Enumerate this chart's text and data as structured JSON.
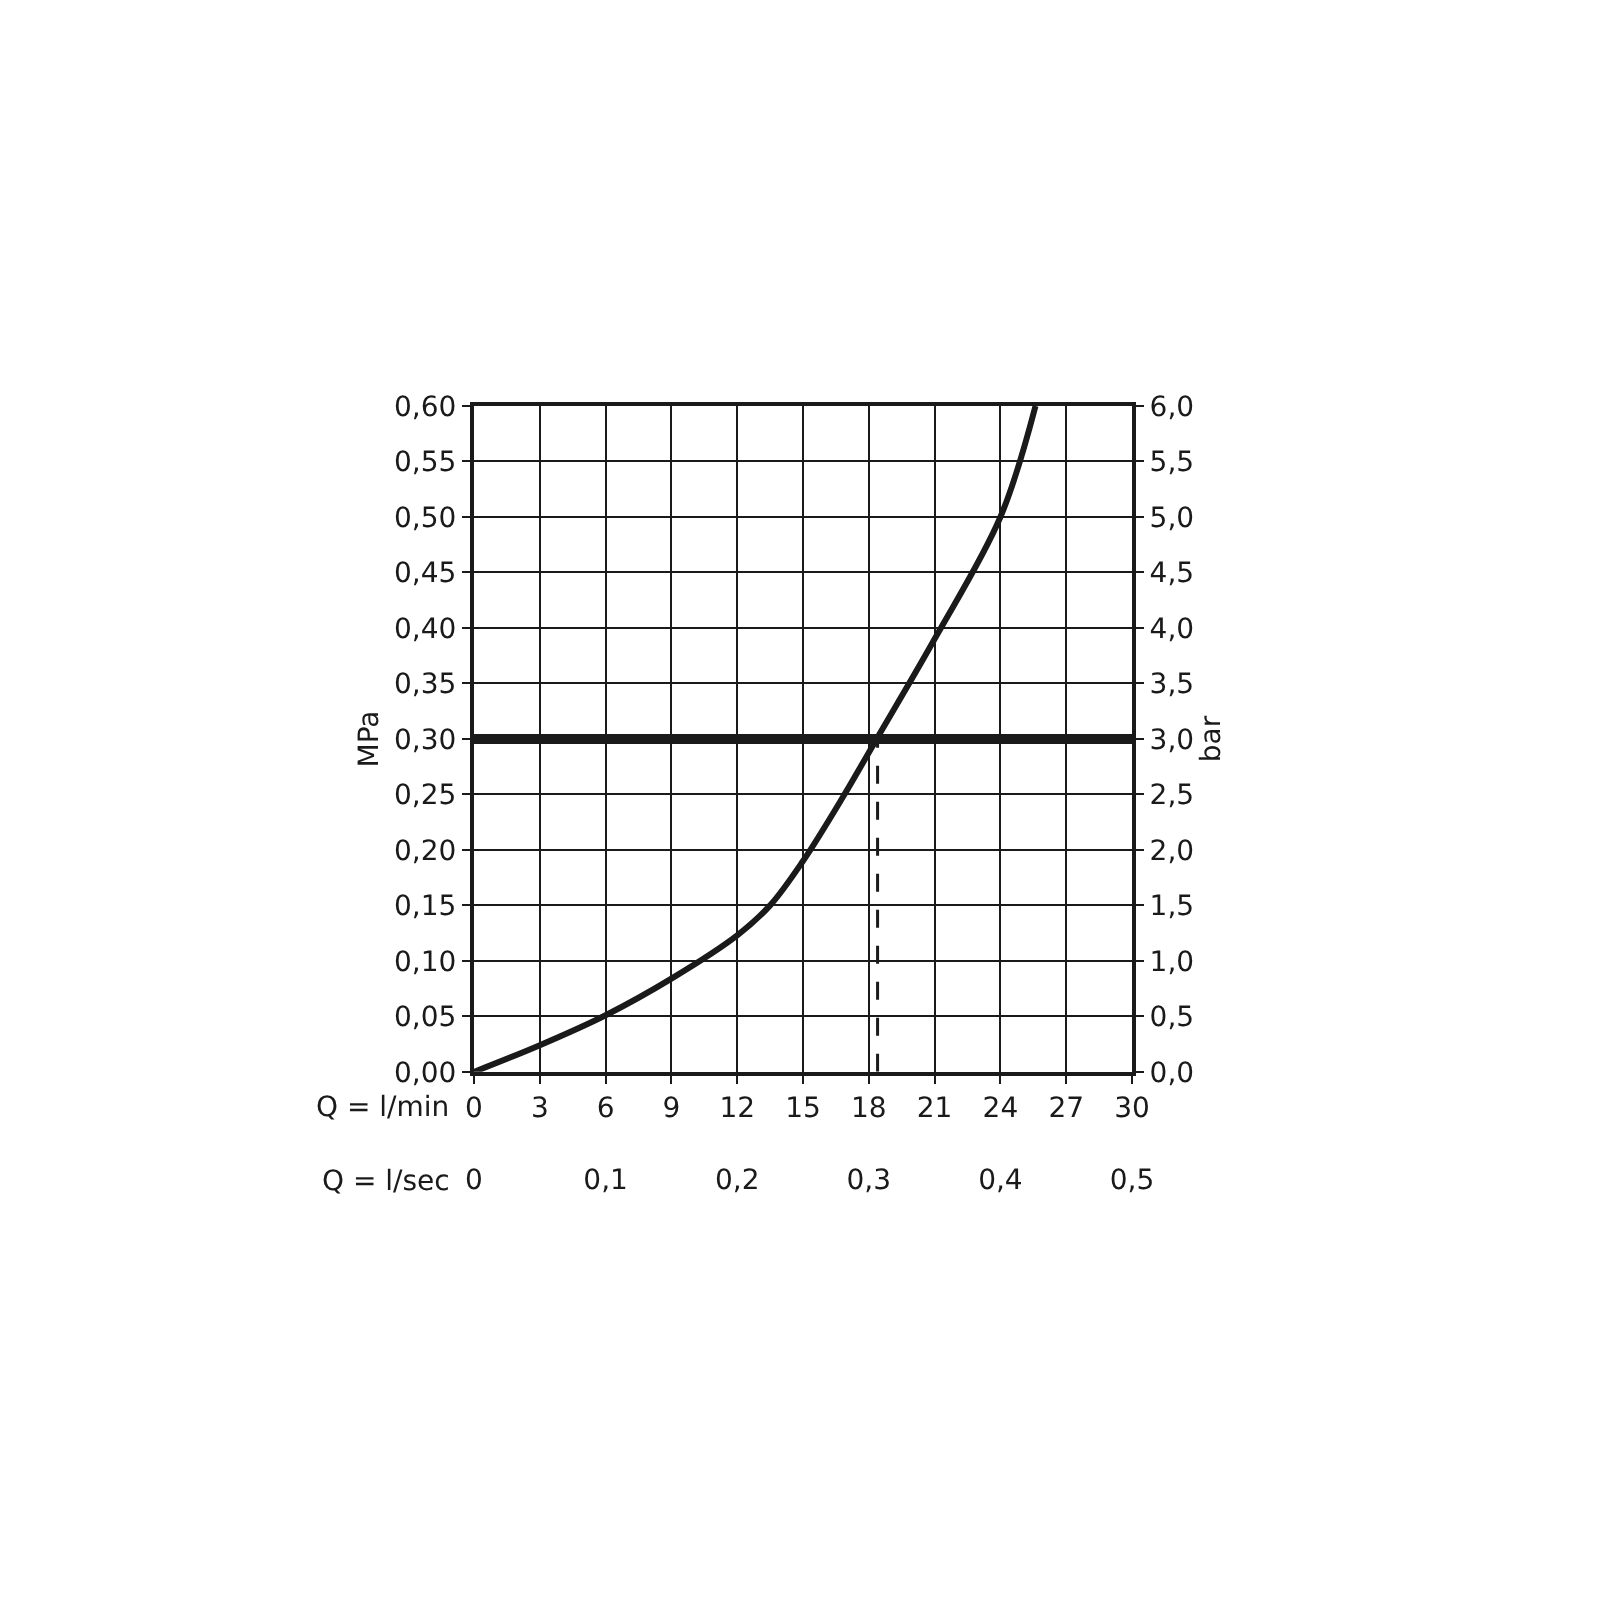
{
  "chart_data": {
    "type": "line",
    "xlabel": "Q = l/min",
    "x2label": "Q = l/sec",
    "ylabel": "MPa",
    "y2label": "bar",
    "series": [
      {
        "color": "#1a1a1a",
        "x": [
          0,
          3,
          6,
          9,
          12,
          13.5,
          15,
          16.8,
          18.3,
          21,
          24,
          25.6
        ],
        "values": [
          0,
          0.024,
          0.051,
          0.084,
          0.123,
          0.15,
          0.19,
          0.247,
          0.298,
          0.39,
          0.5,
          0.6
        ]
      },
      {
        "color": "#1a1a1a",
        "x": [
          18.4,
          18.4
        ],
        "values": [
          0,
          0.3
        ],
        "line_style": "dashed"
      }
    ],
    "ref_lines": [
      {
        "axis": "y",
        "value": 0.3,
        "color": "#1a1a1a"
      }
    ],
    "xlim": [
      0,
      30
    ],
    "xticks": [
      0,
      3,
      6,
      9,
      12,
      15,
      18,
      21,
      24,
      27,
      30
    ],
    "x2lim": [
      0,
      0.5
    ],
    "x2ticks": [
      0,
      {
        "value": 0.1,
        "label": "0,1"
      },
      {
        "value": 0.2,
        "label": "0,2"
      },
      {
        "value": 0.3,
        "label": "0,3"
      },
      {
        "value": 0.4,
        "label": "0,4"
      },
      {
        "value": 0.5,
        "label": "0,5"
      }
    ],
    "ylim": [
      0,
      0.6
    ],
    "yticks": [
      {
        "value": 0,
        "label": "0,00"
      },
      {
        "value": 0.05,
        "label": "0,05"
      },
      {
        "value": 0.1,
        "label": "0,10"
      },
      {
        "value": 0.15,
        "label": "0,15"
      },
      {
        "value": 0.2,
        "label": "0,20"
      },
      {
        "value": 0.25,
        "label": "0,25"
      },
      {
        "value": 0.3,
        "label": "0,30"
      },
      {
        "value": 0.35,
        "label": "0,35"
      },
      {
        "value": 0.4,
        "label": "0,40"
      },
      {
        "value": 0.45,
        "label": "0,45"
      },
      {
        "value": 0.5,
        "label": "0,50"
      },
      {
        "value": 0.55,
        "label": "0,55"
      },
      {
        "value": 0.6,
        "label": "0,60"
      }
    ],
    "y2lim": [
      0,
      6
    ],
    "y2ticks": [
      {
        "value": 0,
        "label": "0,0"
      },
      {
        "value": 0.5,
        "label": "0,5"
      },
      {
        "value": 1,
        "label": "1,0"
      },
      {
        "value": 1.5,
        "label": "1,5"
      },
      {
        "value": 2,
        "label": "2,0"
      },
      {
        "value": 2.5,
        "label": "2,5"
      },
      {
        "value": 3,
        "label": "3,0"
      },
      {
        "value": 3.5,
        "label": "3,5"
      },
      {
        "value": 4,
        "label": "4,0"
      },
      {
        "value": 4.5,
        "label": "4,5"
      },
      {
        "value": 5,
        "label": "5,0"
      },
      {
        "value": 5.5,
        "label": "5,5"
      },
      {
        "value": 6,
        "label": "6,0"
      }
    ],
    "grid": true,
    "marker": "none",
    "line_style": "solid"
  }
}
